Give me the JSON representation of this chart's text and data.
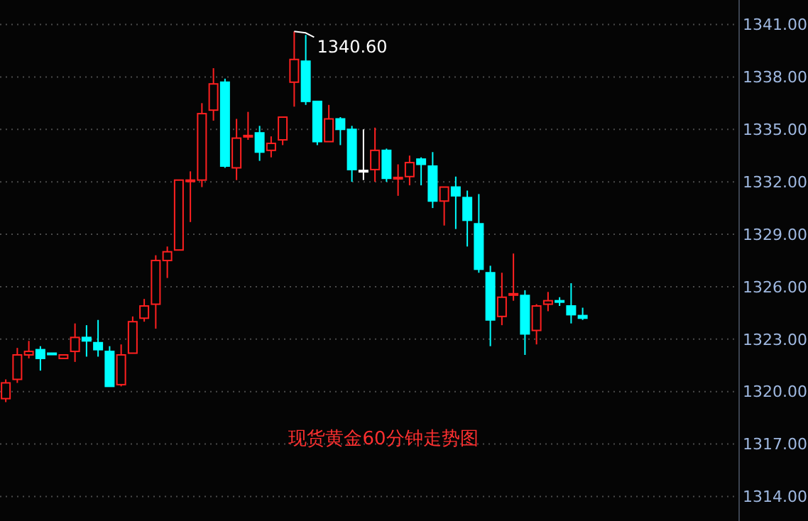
{
  "chart_data": {
    "type": "candlestick",
    "title": "现货黄金60分钟走势图",
    "categories": [
      null,
      null,
      null,
      null,
      null,
      null,
      null,
      null,
      null,
      null,
      null,
      null,
      null,
      null,
      null,
      null,
      null,
      null,
      null,
      null,
      null,
      null,
      null,
      null,
      null,
      null,
      null,
      null,
      null,
      null,
      null,
      null,
      null,
      null,
      null,
      null,
      null,
      null,
      null,
      null,
      null,
      null,
      null,
      null,
      null,
      null,
      null,
      null,
      null,
      null,
      null,
      null,
      null,
      null,
      null,
      null,
      null,
      null,
      null,
      null,
      null,
      null,
      null,
      null
    ],
    "ohlc": [
      [
        1319.6,
        1320.7,
        1319.4,
        1320.5
      ],
      [
        1320.7,
        1322.5,
        1320.5,
        1322.1
      ],
      [
        1322.1,
        1322.9,
        1321.9,
        1322.3
      ],
      [
        1322.4,
        1322.6,
        1321.2,
        1321.9
      ],
      [
        1322.2,
        1322.2,
        1322.2,
        1322.2
      ],
      [
        1321.9,
        1322.1,
        1321.9,
        1322.1
      ],
      [
        1322.3,
        1323.9,
        1321.7,
        1323.1
      ],
      [
        1323.1,
        1323.8,
        1322.0,
        1322.9
      ],
      [
        1322.8,
        1324.1,
        1322.0,
        1322.4
      ],
      [
        1322.3,
        1322.6,
        1320.3,
        1320.3
      ],
      [
        1320.4,
        1322.7,
        1320.3,
        1322.1
      ],
      [
        1322.2,
        1324.3,
        1322.2,
        1324.0
      ],
      [
        1324.2,
        1325.3,
        1324.0,
        1324.9
      ],
      [
        1325.0,
        1327.8,
        1323.6,
        1327.5
      ],
      [
        1327.5,
        1328.3,
        1326.5,
        1328.0
      ],
      [
        1328.1,
        1332.1,
        1328.1,
        1332.1
      ],
      [
        1332.05,
        1332.6,
        1329.7,
        1332.1
      ],
      [
        1332.1,
        1336.5,
        1331.7,
        1335.9
      ],
      [
        1336.1,
        1338.5,
        1335.5,
        1337.6
      ],
      [
        1337.7,
        1337.9,
        1332.8,
        1332.9
      ],
      [
        1332.8,
        1335.6,
        1332.1,
        1334.5
      ],
      [
        1334.6,
        1336.0,
        1334.4,
        1334.65
      ],
      [
        1334.8,
        1335.2,
        1333.2,
        1333.7
      ],
      [
        1333.8,
        1334.6,
        1333.4,
        1334.2
      ],
      [
        1334.4,
        1335.7,
        1334.1,
        1335.7
      ],
      [
        1337.7,
        1340.6,
        1336.3,
        1339.0
      ],
      [
        1338.9,
        1340.4,
        1336.4,
        1336.6
      ],
      [
        1336.6,
        1336.6,
        1334.1,
        1334.3
      ],
      [
        1334.3,
        1336.4,
        1334.3,
        1335.6
      ],
      [
        1335.6,
        1335.7,
        1334.1,
        1335.0
      ],
      [
        1335.0,
        1335.2,
        1332.0,
        1332.7
      ],
      [
        1332.65,
        1335.0,
        1332.1,
        1332.65
      ],
      [
        1332.7,
        1335.1,
        1332.0,
        1333.8
      ],
      [
        1333.8,
        1333.9,
        1332.0,
        1332.2
      ],
      [
        1332.2,
        1333.0,
        1331.2,
        1332.25
      ],
      [
        1332.3,
        1333.5,
        1331.8,
        1333.1
      ],
      [
        1333.3,
        1333.4,
        1331.8,
        1333.0
      ],
      [
        1332.9,
        1333.7,
        1330.5,
        1330.9
      ],
      [
        1330.9,
        1331.7,
        1329.5,
        1331.7
      ],
      [
        1331.7,
        1332.3,
        1329.3,
        1331.2
      ],
      [
        1331.1,
        1331.5,
        1328.3,
        1329.8
      ],
      [
        1329.6,
        1331.3,
        1326.8,
        1327.0
      ],
      [
        1326.8,
        1327.2,
        1322.6,
        1324.1
      ],
      [
        1324.3,
        1326.8,
        1323.8,
        1325.4
      ],
      [
        1325.55,
        1327.9,
        1325.2,
        1325.6
      ],
      [
        1325.5,
        1325.8,
        1322.1,
        1323.3
      ],
      [
        1323.5,
        1325.0,
        1322.7,
        1324.9
      ],
      [
        1325.0,
        1325.7,
        1324.6,
        1325.2
      ],
      [
        1325.2,
        1325.4,
        1324.9,
        1325.15
      ],
      [
        1324.9,
        1326.2,
        1323.9,
        1324.4
      ],
      [
        1324.35,
        1324.8,
        1324.1,
        1324.2
      ],
      null,
      null,
      null,
      null,
      null,
      null,
      null,
      null,
      null,
      null,
      null,
      null,
      null
    ],
    "colors": [
      "#ff2020",
      "#ff2020",
      "#ff2020",
      "#00ffff",
      "#00ffff",
      "#ff2020",
      "#ff2020",
      "#00ffff",
      "#00ffff",
      "#00ffff",
      "#ff2020",
      "#ff2020",
      "#ff2020",
      "#ff2020",
      "#ff2020",
      "#ff2020",
      "#ff2020",
      "#ff2020",
      "#ff2020",
      "#00ffff",
      "#ff2020",
      "#ff2020",
      "#00ffff",
      "#ff2020",
      "#ff2020",
      "#ff2020",
      "#00ffff",
      "#00ffff",
      "#ff2020",
      "#00ffff",
      "#00ffff",
      "#ffffff",
      "#ff2020",
      "#00ffff",
      "#ff2020",
      "#ff2020",
      "#00ffff",
      "#00ffff",
      "#ff2020",
      "#00ffff",
      "#00ffff",
      "#00ffff",
      "#00ffff",
      "#ff2020",
      "#ff2020",
      "#00ffff",
      "#ff2020",
      "#ff2020",
      "#00ffff",
      "#00ffff",
      "#00ffff",
      null,
      null,
      null,
      null,
      null,
      null,
      null,
      null,
      null,
      null,
      null,
      null,
      null
    ],
    "ylim": [
      1312.6,
      1342.4
    ],
    "yticks": [
      {
        "value": 1341,
        "label": "1341.00"
      },
      {
        "value": 1338,
        "label": "1338.00"
      },
      {
        "value": 1335,
        "label": "1335.00"
      },
      {
        "value": 1332,
        "label": "1332.00"
      },
      {
        "value": 1329,
        "label": "1329.00"
      },
      {
        "value": 1326,
        "label": "1326.00"
      },
      {
        "value": 1323,
        "label": "1323.00"
      },
      {
        "value": 1320,
        "label": "1320.00"
      },
      {
        "value": 1317,
        "label": "1317.00"
      },
      {
        "value": 1314,
        "label": "1314.00"
      }
    ],
    "grid": "y",
    "annotations": [
      "1340.60"
    ]
  }
}
